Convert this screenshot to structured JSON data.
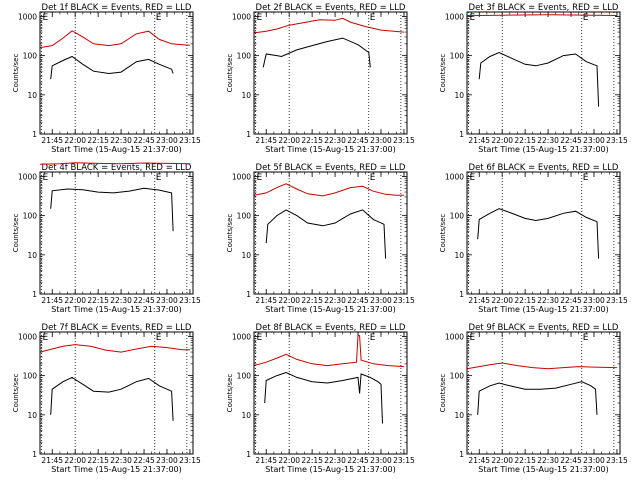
{
  "figure": {
    "background": "#ffffff",
    "events_color": "#000000",
    "lld_color": "#cc0000",
    "ylabel": "Counts/sec",
    "xlabel": "Start Time (15-Aug-15 21:37:00)",
    "x_tick_labels": [
      "21:45",
      "22:00",
      "22:15",
      "22:30",
      "22:45",
      "23:00",
      "23:15"
    ],
    "y_tick_labels": [
      "1",
      "10",
      "100",
      "1000"
    ]
  },
  "chart_data": [
    {
      "type": "line",
      "title": "Det 1f BLACK = Events, RED = LLD",
      "yscale": "log",
      "ylim": [
        1,
        1300
      ],
      "flags": [
        "E",
        "E"
      ],
      "series": [
        {
          "name": "Events",
          "x": [
            "21:44",
            "21:45",
            "21:52",
            "21:58",
            "22:05",
            "22:12",
            "22:22",
            "22:30",
            "22:40",
            "22:48",
            "22:55",
            "23:03",
            "23:04"
          ],
          "values": [
            25,
            55,
            75,
            95,
            60,
            40,
            35,
            38,
            70,
            80,
            60,
            45,
            35
          ]
        },
        {
          "name": "LLD",
          "x": [
            "21:37",
            "21:45",
            "21:52",
            "21:58",
            "22:05",
            "22:12",
            "22:22",
            "22:30",
            "22:40",
            "22:48",
            "22:55",
            "23:03",
            "23:10",
            "23:15"
          ],
          "values": [
            160,
            180,
            280,
            430,
            300,
            200,
            180,
            200,
            360,
            420,
            260,
            200,
            190,
            185
          ]
        }
      ]
    },
    {
      "type": "line",
      "title": "Det 2f BLACK = Events, RED = LLD",
      "yscale": "log",
      "ylim": [
        1,
        1300
      ],
      "flags": [
        "E",
        "E"
      ],
      "series": [
        {
          "name": "Events",
          "x": [
            "21:43",
            "21:45",
            "21:52",
            "21:55",
            "22:05",
            "22:15",
            "22:25",
            "22:35",
            "22:45",
            "22:52",
            "22:53"
          ],
          "values": [
            50,
            110,
            100,
            95,
            140,
            180,
            230,
            280,
            190,
            120,
            50
          ]
        },
        {
          "name": "LLD",
          "x": [
            "21:37",
            "21:45",
            "21:52",
            "22:00",
            "22:10",
            "22:20",
            "22:30",
            "22:35",
            "22:40",
            "22:50",
            "23:00",
            "23:15"
          ],
          "values": [
            380,
            420,
            480,
            600,
            700,
            820,
            800,
            900,
            720,
            550,
            450,
            400
          ]
        }
      ]
    },
    {
      "type": "line",
      "title": "Det 3f BLACK = Events, RED = LLD",
      "yscale": "log",
      "ylim": [
        1,
        1300
      ],
      "flags": [
        "E",
        "E"
      ],
      "series": [
        {
          "name": "Events",
          "x": [
            "21:45",
            "21:46",
            "21:52",
            "21:58",
            "22:05",
            "22:15",
            "22:22",
            "22:30",
            "22:40",
            "22:48",
            "22:55",
            "23:02",
            "23:03"
          ],
          "values": [
            25,
            65,
            95,
            120,
            90,
            60,
            55,
            65,
            100,
            110,
            70,
            55,
            5
          ]
        },
        {
          "name": "LLD",
          "x": [
            "21:37",
            "22:00",
            "22:30",
            "23:00",
            "23:15"
          ],
          "values": [
            1050,
            1080,
            1100,
            1080,
            1060
          ]
        }
      ]
    },
    {
      "type": "line",
      "title": "Det 4f BLACK = Events, RED = LLD",
      "yscale": "log",
      "ylim": [
        1,
        1300
      ],
      "flags": [
        "E",
        "E"
      ],
      "series": [
        {
          "name": "Events",
          "x": [
            "21:44",
            "21:45",
            "21:55",
            "22:05",
            "22:15",
            "22:25",
            "22:35",
            "22:45",
            "22:55",
            "23:03",
            "23:04"
          ],
          "values": [
            150,
            430,
            480,
            460,
            400,
            380,
            420,
            500,
            450,
            380,
            40
          ]
        },
        {
          "name": "LLD",
          "x": [
            "21:37",
            "21:50",
            "22:00",
            "22:15",
            "22:30",
            "22:45",
            "23:00",
            "23:15"
          ],
          "values": [
            2050,
            2100,
            2250,
            2150,
            2100,
            2200,
            2150,
            2100
          ]
        }
      ]
    },
    {
      "type": "line",
      "title": "Det 5f BLACK = Events, RED = LLD",
      "yscale": "log",
      "ylim": [
        1,
        1300
      ],
      "flags": [
        "E",
        "E"
      ],
      "series": [
        {
          "name": "Events",
          "x": [
            "21:45",
            "21:46",
            "21:52",
            "21:58",
            "22:05",
            "22:12",
            "22:22",
            "22:30",
            "22:40",
            "22:48",
            "22:55",
            "23:02",
            "23:03"
          ],
          "values": [
            20,
            60,
            100,
            140,
            100,
            65,
            55,
            65,
            110,
            140,
            80,
            60,
            8
          ]
        },
        {
          "name": "LLD",
          "x": [
            "21:37",
            "21:45",
            "21:52",
            "21:58",
            "22:05",
            "22:12",
            "22:22",
            "22:30",
            "22:40",
            "22:48",
            "22:55",
            "23:03",
            "23:10",
            "23:15"
          ],
          "values": [
            330,
            380,
            520,
            650,
            480,
            360,
            320,
            380,
            520,
            560,
            420,
            350,
            330,
            330
          ]
        }
      ]
    },
    {
      "type": "line",
      "title": "Det 6f BLACK = Events, RED = LLD",
      "yscale": "log",
      "ylim": [
        1,
        1300
      ],
      "flags": [
        "E",
        "E"
      ],
      "series": [
        {
          "name": "Events",
          "x": [
            "21:44",
            "21:45",
            "21:52",
            "21:58",
            "22:05",
            "22:15",
            "22:22",
            "22:30",
            "22:40",
            "22:48",
            "22:55",
            "23:02",
            "23:03"
          ],
          "values": [
            25,
            80,
            115,
            150,
            120,
            85,
            75,
            85,
            115,
            130,
            90,
            70,
            8
          ]
        }
      ]
    },
    {
      "type": "line",
      "title": "Det 7f BLACK = Events, RED = LLD",
      "yscale": "log",
      "ylim": [
        1,
        1300
      ],
      "flags": [
        "E",
        "E"
      ],
      "series": [
        {
          "name": "Events",
          "x": [
            "21:44",
            "21:45",
            "21:52",
            "21:58",
            "22:05",
            "22:12",
            "22:22",
            "22:30",
            "22:40",
            "22:48",
            "22:55",
            "23:03",
            "23:04"
          ],
          "values": [
            10,
            45,
            70,
            90,
            60,
            40,
            38,
            45,
            70,
            85,
            55,
            40,
            7
          ]
        },
        {
          "name": "LLD",
          "x": [
            "21:37",
            "21:45",
            "21:52",
            "22:00",
            "22:10",
            "22:20",
            "22:30",
            "22:40",
            "22:50",
            "23:00",
            "23:10",
            "23:15"
          ],
          "values": [
            400,
            480,
            560,
            620,
            560,
            450,
            400,
            480,
            560,
            520,
            460,
            460
          ]
        }
      ]
    },
    {
      "type": "line",
      "title": "Det 8f BLACK = Events, RED = LLD",
      "yscale": "log",
      "ylim": [
        1,
        1300
      ],
      "flags": [
        "E",
        "E"
      ],
      "series": [
        {
          "name": "Events",
          "x": [
            "21:44",
            "21:45",
            "21:52",
            "21:58",
            "22:05",
            "22:15",
            "22:25",
            "22:35",
            "22:45",
            "22:46",
            "22:47",
            "22:53",
            "22:58",
            "23:00",
            "23:01"
          ],
          "values": [
            20,
            75,
            100,
            120,
            90,
            70,
            65,
            75,
            90,
            35,
            110,
            90,
            70,
            60,
            6
          ]
        },
        {
          "name": "LLD",
          "x": [
            "21:37",
            "21:45",
            "21:52",
            "21:58",
            "22:05",
            "22:15",
            "22:25",
            "22:35",
            "22:44",
            "22:45",
            "22:46",
            "22:47",
            "22:55",
            "23:05",
            "23:15"
          ],
          "values": [
            180,
            220,
            280,
            350,
            260,
            200,
            180,
            200,
            220,
            1050,
            1050,
            250,
            200,
            180,
            170
          ]
        }
      ]
    },
    {
      "type": "line",
      "title": "Det 9f BLACK = Events, RED = LLD",
      "yscale": "log",
      "ylim": [
        1,
        1300
      ],
      "flags": [
        "E",
        "E"
      ],
      "series": [
        {
          "name": "Events",
          "x": [
            "21:44",
            "21:45",
            "21:52",
            "21:58",
            "22:05",
            "22:15",
            "22:25",
            "22:35",
            "22:45",
            "22:52",
            "22:58",
            "23:01",
            "23:02"
          ],
          "values": [
            10,
            40,
            55,
            65,
            55,
            45,
            45,
            48,
            60,
            70,
            55,
            45,
            10
          ]
        },
        {
          "name": "LLD",
          "x": [
            "21:37",
            "21:45",
            "21:52",
            "22:00",
            "22:10",
            "22:20",
            "22:30",
            "22:40",
            "22:50",
            "23:00",
            "23:15"
          ],
          "values": [
            150,
            170,
            190,
            210,
            180,
            160,
            150,
            160,
            170,
            165,
            160
          ]
        }
      ]
    }
  ]
}
